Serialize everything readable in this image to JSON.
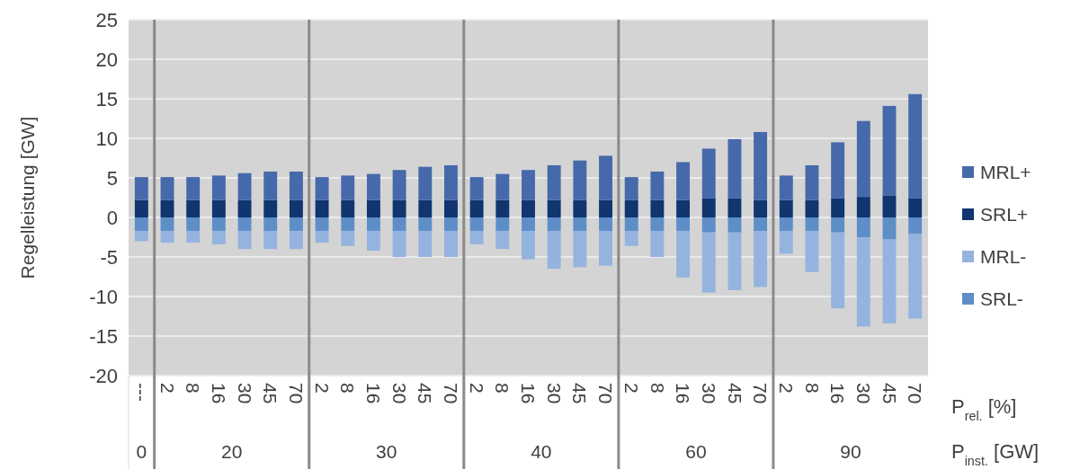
{
  "chart_data": {
    "type": "bar",
    "stacked": true,
    "ylabel": "Regelleistung [GW]",
    "xlabel": "P$_{rel.}$ [%]",
    "annotations": [
      "P$_{inst.}$ [GW]",
      "0",
      "20",
      "30",
      "40",
      "60",
      "90"
    ],
    "categories": [
      "---",
      "2",
      "8",
      "16",
      "30",
      "45",
      "70",
      "2",
      "8",
      "16",
      "30",
      "45",
      "70",
      "2",
      "8",
      "16",
      "30",
      "45",
      "70",
      "2",
      "8",
      "16",
      "30",
      "45",
      "70",
      "2",
      "8",
      "16",
      "30",
      "45",
      "70"
    ],
    "series": [
      {
        "name": "SRL+",
        "color": "#10356f",
        "values": [
          2.2,
          2.2,
          2.2,
          2.2,
          2.2,
          2.2,
          2.2,
          2.2,
          2.2,
          2.2,
          2.2,
          2.2,
          2.2,
          2.2,
          2.2,
          2.2,
          2.2,
          2.2,
          2.2,
          2.2,
          2.2,
          2.2,
          2.4,
          2.4,
          2.2,
          2.2,
          2.2,
          2.4,
          2.6,
          2.8,
          2.4
        ]
      },
      {
        "name": "MRL+",
        "color": "#4669ab",
        "values": [
          2.9,
          2.9,
          2.9,
          3.1,
          3.4,
          3.6,
          3.6,
          2.9,
          3.1,
          3.3,
          3.8,
          4.2,
          4.4,
          2.9,
          3.3,
          3.8,
          4.4,
          5.0,
          5.6,
          2.9,
          3.6,
          4.8,
          6.3,
          7.5,
          8.6,
          3.1,
          4.4,
          7.1,
          9.6,
          11.3,
          13.2
        ]
      },
      {
        "name": "SRL-",
        "color": "#5e8ec8",
        "values": [
          -1.7,
          -1.7,
          -1.7,
          -1.7,
          -1.7,
          -1.7,
          -1.7,
          -1.7,
          -1.7,
          -1.7,
          -1.7,
          -1.7,
          -1.7,
          -1.7,
          -1.7,
          -1.7,
          -1.7,
          -1.7,
          -1.7,
          -1.7,
          -1.7,
          -1.7,
          -1.9,
          -1.9,
          -1.7,
          -1.7,
          -1.7,
          -1.9,
          -2.5,
          -2.8,
          -2.1
        ]
      },
      {
        "name": "MRL-",
        "color": "#95b3df",
        "values": [
          -1.3,
          -1.5,
          -1.5,
          -1.7,
          -2.3,
          -2.3,
          -2.3,
          -1.5,
          -1.9,
          -2.5,
          -3.3,
          -3.3,
          -3.3,
          -1.7,
          -2.3,
          -3.6,
          -4.8,
          -4.6,
          -4.4,
          -1.9,
          -3.3,
          -5.9,
          -7.6,
          -7.3,
          -7.1,
          -2.9,
          -5.2,
          -9.6,
          -11.3,
          -10.6,
          -10.7
        ]
      }
    ],
    "ylim": [
      -20,
      25
    ],
    "yticks": [
      -20,
      -15,
      -10,
      -5,
      0,
      5,
      10,
      15,
      20,
      25
    ],
    "grid": "y",
    "legend": "right"
  }
}
